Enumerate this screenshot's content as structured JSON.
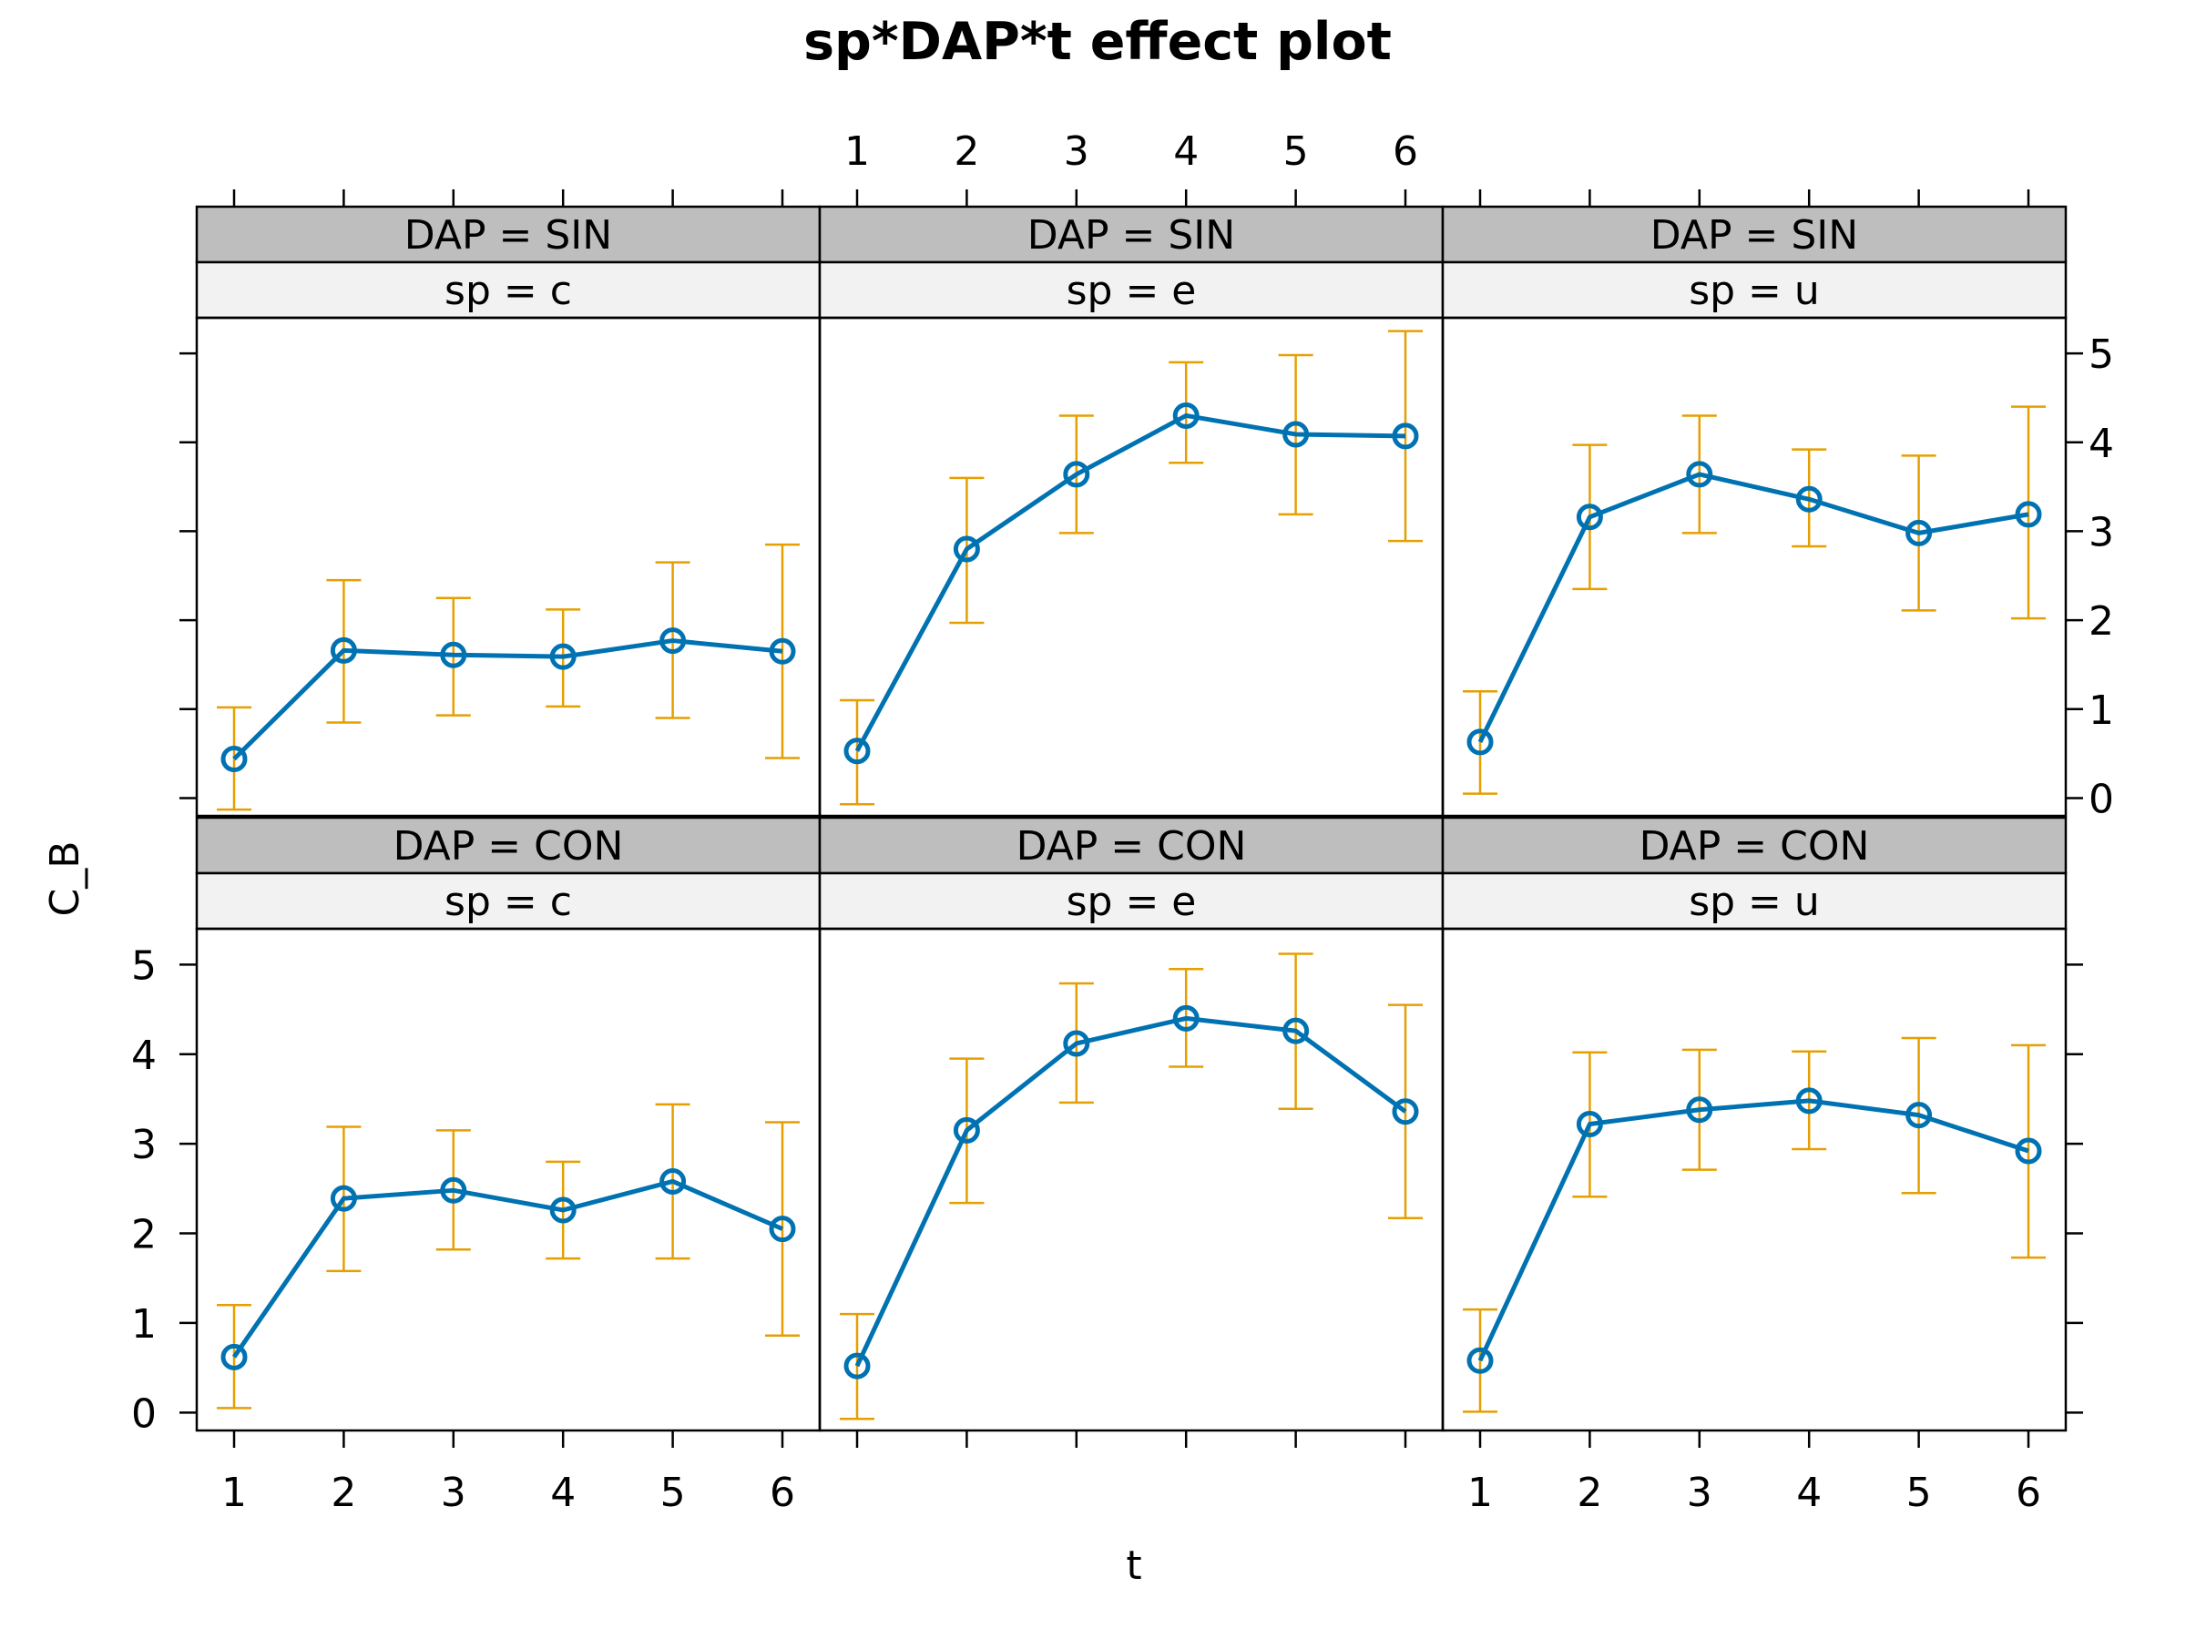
{
  "chart_data": {
    "type": "line",
    "title": "sp*DAP*t effect plot",
    "xlabel": "t",
    "ylabel": "C_B",
    "x": [
      1,
      2,
      3,
      4,
      5,
      6
    ],
    "x_tick_labels": [
      "1",
      "2",
      "3",
      "4",
      "5",
      "6"
    ],
    "ylim": [
      -0.2,
      5.4
    ],
    "y_ticks": [
      0,
      1,
      2,
      3,
      4,
      5
    ],
    "y_tick_labels": [
      "0",
      "1",
      "2",
      "3",
      "4",
      "5"
    ],
    "grid": false,
    "colors": {
      "line": "#0072B2",
      "error_bar": "#E69F00",
      "strip_outer": "#BEBEBE",
      "strip_inner": "#F2F2F2"
    },
    "panels": [
      {
        "strip_outer": "DAP = SIN",
        "strip_inner": "sp = c",
        "fit": [
          0.44,
          1.66,
          1.61,
          1.59,
          1.77,
          1.65
        ],
        "lower": [
          -0.13,
          0.85,
          0.93,
          1.03,
          0.9,
          0.45
        ],
        "upper": [
          1.02,
          2.45,
          2.25,
          2.12,
          2.65,
          2.85
        ]
      },
      {
        "strip_outer": "DAP = SIN",
        "strip_inner": "sp = e",
        "fit": [
          0.53,
          2.8,
          3.64,
          4.3,
          4.09,
          4.07
        ],
        "lower": [
          -0.07,
          1.97,
          2.98,
          3.77,
          3.19,
          2.89
        ],
        "upper": [
          1.1,
          3.6,
          4.3,
          4.9,
          4.98,
          5.25
        ]
      },
      {
        "strip_outer": "DAP = SIN",
        "strip_inner": "sp = u",
        "fit": [
          0.63,
          3.16,
          3.64,
          3.36,
          2.98,
          3.19
        ],
        "lower": [
          0.05,
          2.35,
          2.98,
          2.83,
          2.11,
          2.02
        ],
        "upper": [
          1.2,
          3.97,
          4.3,
          3.92,
          3.85,
          4.4
        ]
      },
      {
        "strip_outer": "DAP = CON",
        "strip_inner": "sp = c",
        "fit": [
          0.62,
          2.39,
          2.48,
          2.26,
          2.58,
          2.05
        ],
        "lower": [
          0.05,
          1.58,
          1.82,
          1.72,
          1.72,
          0.86
        ],
        "upper": [
          1.2,
          3.19,
          3.15,
          2.8,
          3.44,
          3.24
        ]
      },
      {
        "strip_outer": "DAP = CON",
        "strip_inner": "sp = e",
        "fit": [
          0.52,
          3.15,
          4.12,
          4.4,
          4.26,
          3.36
        ],
        "lower": [
          -0.07,
          2.34,
          3.46,
          3.86,
          3.39,
          2.17
        ],
        "upper": [
          1.1,
          3.95,
          4.79,
          4.95,
          5.12,
          4.55
        ]
      },
      {
        "strip_outer": "DAP = CON",
        "strip_inner": "sp = u",
        "fit": [
          0.58,
          3.22,
          3.38,
          3.48,
          3.32,
          2.92
        ],
        "lower": [
          0.01,
          2.41,
          2.71,
          2.94,
          2.45,
          1.73
        ],
        "upper": [
          1.15,
          4.02,
          4.05,
          4.03,
          4.18,
          4.1
        ]
      }
    ]
  }
}
